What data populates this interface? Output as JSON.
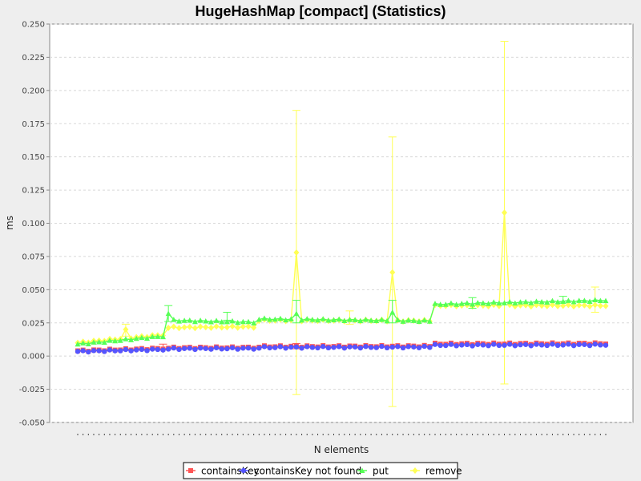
{
  "chart_data": {
    "type": "line",
    "title": "HugeHashMap [compact] (Statistics)",
    "xlabel": "N elements",
    "ylabel": "ms",
    "ylim": [
      -0.05,
      0.25
    ],
    "yticks": [
      "0.250",
      "0.225",
      "0.200",
      "0.175",
      "0.150",
      "0.125",
      "0.100",
      "0.075",
      "0.050",
      "0.025",
      "0.000",
      "-0.025",
      "-0.050"
    ],
    "grid": true,
    "legend_position": "bottom",
    "n_points": 100,
    "series": [
      {
        "name": "containsKey",
        "color": "#ff5555",
        "marker": "square",
        "segments": [
          {
            "from": 0,
            "to": 16,
            "start": 0.004,
            "end": 0.0058
          },
          {
            "from": 17,
            "to": 33,
            "start": 0.0062,
            "end": 0.0065
          },
          {
            "from": 34,
            "to": 66,
            "start": 0.0072,
            "end": 0.0075
          },
          {
            "from": 67,
            "to": 99,
            "start": 0.0092,
            "end": 0.0095
          }
        ],
        "overrides": [],
        "errors": [
          {
            "i": 16,
            "lo": 0.0048,
            "hi": 0.009
          },
          {
            "i": 41,
            "lo": 0.0055,
            "hi": 0.0095
          }
        ]
      },
      {
        "name": "containsKey not found",
        "color": "#5555ff",
        "marker": "circle",
        "segments": [
          {
            "from": 0,
            "to": 16,
            "start": 0.0035,
            "end": 0.005
          },
          {
            "from": 17,
            "to": 33,
            "start": 0.0055,
            "end": 0.0058
          },
          {
            "from": 34,
            "to": 66,
            "start": 0.0065,
            "end": 0.0068
          },
          {
            "from": 67,
            "to": 99,
            "start": 0.0082,
            "end": 0.0085
          }
        ],
        "overrides": [],
        "errors": []
      },
      {
        "name": "put",
        "color": "#55ff55",
        "marker": "triangle",
        "segments": [
          {
            "from": 0,
            "to": 16,
            "start": 0.009,
            "end": 0.015
          },
          {
            "from": 17,
            "to": 33,
            "start": 0.027,
            "end": 0.0255
          },
          {
            "from": 34,
            "to": 66,
            "start": 0.028,
            "end": 0.0265
          },
          {
            "from": 67,
            "to": 99,
            "start": 0.039,
            "end": 0.042
          }
        ],
        "overrides": [
          {
            "i": 17,
            "v": 0.032
          },
          {
            "i": 41,
            "v": 0.032
          },
          {
            "i": 59,
            "v": 0.033
          }
        ],
        "errors": [
          {
            "i": 17,
            "lo": 0.026,
            "hi": 0.038
          },
          {
            "i": 28,
            "lo": 0.027,
            "hi": 0.033
          },
          {
            "i": 41,
            "lo": 0.025,
            "hi": 0.042
          },
          {
            "i": 59,
            "lo": 0.025,
            "hi": 0.042
          },
          {
            "i": 74,
            "lo": 0.036,
            "hi": 0.044
          },
          {
            "i": 91,
            "lo": 0.04,
            "hi": 0.045
          }
        ]
      },
      {
        "name": "remove",
        "color": "#ffff55",
        "marker": "diamond",
        "segments": [
          {
            "from": 0,
            "to": 16,
            "start": 0.01,
            "end": 0.016
          },
          {
            "from": 17,
            "to": 33,
            "start": 0.0215,
            "end": 0.022
          },
          {
            "from": 34,
            "to": 66,
            "start": 0.027,
            "end": 0.0265
          },
          {
            "from": 67,
            "to": 99,
            "start": 0.038,
            "end": 0.038
          }
        ],
        "overrides": [
          {
            "i": 41,
            "v": 0.078
          },
          {
            "i": 59,
            "v": 0.063
          },
          {
            "i": 80,
            "v": 0.108
          },
          {
            "i": 9,
            "v": 0.02
          }
        ],
        "errors": [
          {
            "i": 9,
            "lo": 0.015,
            "hi": 0.024
          },
          {
            "i": 41,
            "lo": -0.029,
            "hi": 0.185
          },
          {
            "i": 51,
            "lo": 0.024,
            "hi": 0.034
          },
          {
            "i": 59,
            "lo": -0.038,
            "hi": 0.165
          },
          {
            "i": 80,
            "lo": -0.021,
            "hi": 0.237
          },
          {
            "i": 97,
            "lo": 0.033,
            "hi": 0.052
          }
        ]
      }
    ]
  }
}
